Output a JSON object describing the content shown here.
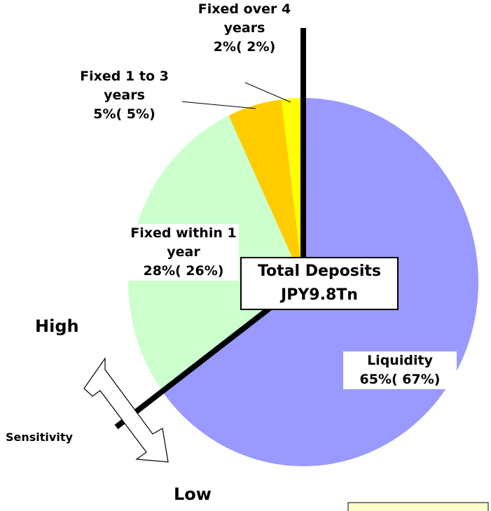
{
  "chart_data": {
    "type": "pie",
    "categories": [
      "Liquidity",
      "Fixed within 1 year",
      "Fixed 1 to 3 years",
      "Fixed over 4 years"
    ],
    "values": [
      65,
      28,
      5,
      2
    ],
    "value_labels": [
      "65%( 67%)",
      "28%( 26%)",
      "5%( 5%)",
      "2%( 2%)"
    ],
    "colors": [
      "#9999ff",
      "#ccffcc",
      "#ffcc00",
      "#ffff00"
    ],
    "center_label": [
      "Total Deposits",
      "JPY9.8Tn"
    ],
    "annotations": {
      "high": "High",
      "low": "Low",
      "axis": "Sensitivity"
    }
  }
}
